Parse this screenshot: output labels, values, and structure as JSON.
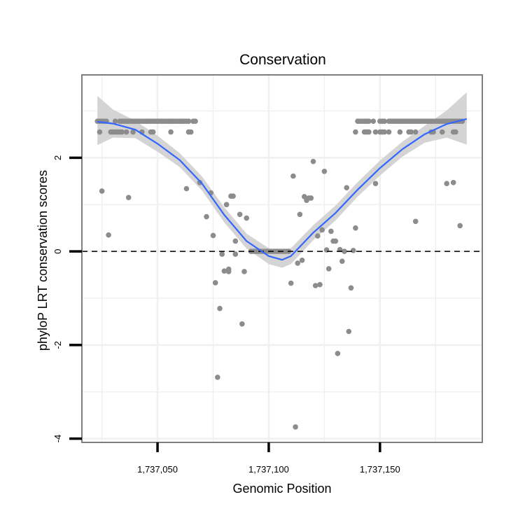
{
  "chart_data": {
    "type": "scatter",
    "title": "Conservation",
    "xlabel": "Genomic Position",
    "ylabel": "phyloP LRT conservation scores",
    "xlim": [
      1737016,
      1737196
    ],
    "ylim": [
      -4.08,
      3.77
    ],
    "x_ticks": [
      1737050,
      1737100,
      1737150
    ],
    "x_tick_labels": [
      "1,737,050",
      "1,737,100",
      "1,737,150"
    ],
    "y_ticks": [
      -4,
      -2,
      0,
      2
    ],
    "y_tick_labels": [
      "-4",
      "-2",
      "0",
      "2"
    ],
    "grid": true,
    "reference_line": {
      "y": 0,
      "style": "dashed"
    },
    "colors": {
      "points": "#8c8c8c",
      "smooth": "#3366ff",
      "ribbon": "#d4d4d4",
      "panel_border": "#7f7f7f",
      "grid": "#f0f0f0"
    },
    "series": [
      {
        "name": "phyloP scores",
        "points": [
          [
            1737023,
            2.78
          ],
          [
            1737024,
            2.78
          ],
          [
            1737025,
            2.78
          ],
          [
            1737026,
            2.78
          ],
          [
            1737027,
            2.78
          ],
          [
            1737024,
            2.55
          ],
          [
            1737029,
            2.55
          ],
          [
            1737030,
            2.55
          ],
          [
            1737031,
            2.55
          ],
          [
            1737032,
            2.55
          ],
          [
            1737033,
            2.55
          ],
          [
            1737034,
            2.55
          ],
          [
            1737036,
            2.55
          ],
          [
            1737039,
            2.55
          ],
          [
            1737043,
            2.55
          ],
          [
            1737047,
            2.55
          ],
          [
            1737048,
            2.55
          ],
          [
            1737056,
            2.55
          ],
          [
            1737064,
            2.55
          ],
          [
            1737065,
            2.55
          ],
          [
            1737031,
            2.78
          ],
          [
            1737033,
            2.78
          ],
          [
            1737034,
            2.78
          ],
          [
            1737035,
            2.78
          ],
          [
            1737036,
            2.78
          ],
          [
            1737037,
            2.78
          ],
          [
            1737038,
            2.78
          ],
          [
            1737039,
            2.78
          ],
          [
            1737040,
            2.78
          ],
          [
            1737041,
            2.78
          ],
          [
            1737042,
            2.78
          ],
          [
            1737043,
            2.78
          ],
          [
            1737044,
            2.78
          ],
          [
            1737045,
            2.78
          ],
          [
            1737046,
            2.78
          ],
          [
            1737047,
            2.78
          ],
          [
            1737048,
            2.78
          ],
          [
            1737049,
            2.78
          ],
          [
            1737050,
            2.78
          ],
          [
            1737051,
            2.78
          ],
          [
            1737052,
            2.78
          ],
          [
            1737053,
            2.78
          ],
          [
            1737054,
            2.78
          ],
          [
            1737055,
            2.78
          ],
          [
            1737056,
            2.78
          ],
          [
            1737057,
            2.78
          ],
          [
            1737058,
            2.78
          ],
          [
            1737059,
            2.78
          ],
          [
            1737060,
            2.78
          ],
          [
            1737061,
            2.78
          ],
          [
            1737062,
            2.78
          ],
          [
            1737063,
            2.78
          ],
          [
            1737064,
            2.78
          ],
          [
            1737066,
            2.78
          ],
          [
            1737067,
            2.78
          ],
          [
            1737140,
            2.78
          ],
          [
            1737141,
            2.78
          ],
          [
            1737142,
            2.78
          ],
          [
            1737143,
            2.78
          ],
          [
            1737144,
            2.78
          ],
          [
            1737145,
            2.78
          ],
          [
            1737147,
            2.78
          ],
          [
            1737150,
            2.78
          ],
          [
            1737151,
            2.78
          ],
          [
            1737152,
            2.78
          ],
          [
            1737154,
            2.78
          ],
          [
            1737155,
            2.78
          ],
          [
            1737156,
            2.78
          ],
          [
            1737157,
            2.78
          ],
          [
            1737158,
            2.78
          ],
          [
            1737159,
            2.78
          ],
          [
            1737160,
            2.78
          ],
          [
            1737161,
            2.78
          ],
          [
            1737162,
            2.78
          ],
          [
            1737163,
            2.78
          ],
          [
            1737164,
            2.78
          ],
          [
            1737165,
            2.78
          ],
          [
            1737166,
            2.78
          ],
          [
            1737167,
            2.78
          ],
          [
            1737168,
            2.78
          ],
          [
            1737169,
            2.78
          ],
          [
            1737170,
            2.78
          ],
          [
            1737171,
            2.78
          ],
          [
            1737172,
            2.78
          ],
          [
            1737173,
            2.78
          ],
          [
            1737174,
            2.78
          ],
          [
            1737175,
            2.78
          ],
          [
            1737176,
            2.78
          ],
          [
            1737177,
            2.78
          ],
          [
            1737178,
            2.78
          ],
          [
            1737179,
            2.78
          ],
          [
            1737180,
            2.78
          ],
          [
            1737181,
            2.78
          ],
          [
            1737182,
            2.78
          ],
          [
            1737183,
            2.78
          ],
          [
            1737184,
            2.78
          ],
          [
            1737185,
            2.78
          ],
          [
            1737186,
            2.78
          ],
          [
            1737187,
            2.78
          ],
          [
            1737139,
            2.55
          ],
          [
            1737143,
            2.55
          ],
          [
            1737144,
            2.55
          ],
          [
            1737145,
            2.55
          ],
          [
            1737148,
            2.55
          ],
          [
            1737150,
            2.55
          ],
          [
            1737151,
            2.55
          ],
          [
            1737152,
            2.55
          ],
          [
            1737154,
            2.55
          ],
          [
            1737159,
            2.55
          ],
          [
            1737163,
            2.55
          ],
          [
            1737164,
            2.55
          ],
          [
            1737166,
            2.55
          ],
          [
            1737173,
            2.55
          ],
          [
            1737174,
            2.55
          ],
          [
            1737178,
            2.55
          ],
          [
            1737183,
            2.55
          ],
          [
            1737184,
            2.55
          ],
          [
            1737025,
            1.29
          ],
          [
            1737028,
            0.35
          ],
          [
            1737037,
            1.15
          ],
          [
            1737063,
            1.34
          ],
          [
            1737069,
            1.47
          ],
          [
            1737072,
            0.74
          ],
          [
            1737074,
            1.25
          ],
          [
            1737075,
            0.34
          ],
          [
            1737076,
            -0.67
          ],
          [
            1737077,
            -2.69
          ],
          [
            1737078,
            -1.22
          ],
          [
            1737079,
            -0.06
          ],
          [
            1737080,
            -0.42
          ],
          [
            1737081,
            1.0
          ],
          [
            1737082,
            -0.43
          ],
          [
            1737082,
            -0.38
          ],
          [
            1737083,
            1.18
          ],
          [
            1737084,
            1.18
          ],
          [
            1737085,
            0.22
          ],
          [
            1737085,
            -0.06
          ],
          [
            1737087,
            0.79
          ],
          [
            1737088,
            -1.55
          ],
          [
            1737089,
            -0.43
          ],
          [
            1737090,
            0.71
          ],
          [
            1737092,
            0.0
          ],
          [
            1737093,
            0.0
          ],
          [
            1737094,
            0.0
          ],
          [
            1737095,
            0.0
          ],
          [
            1737096,
            0.0
          ],
          [
            1737097,
            0.0
          ],
          [
            1737098,
            0.0
          ],
          [
            1737099,
            0.0
          ],
          [
            1737100,
            0.0
          ],
          [
            1737101,
            0.0
          ],
          [
            1737102,
            0.0
          ],
          [
            1737103,
            0.0
          ],
          [
            1737104,
            0.0
          ],
          [
            1737105,
            0.0
          ],
          [
            1737106,
            0.0
          ],
          [
            1737107,
            0.0
          ],
          [
            1737108,
            0.0
          ],
          [
            1737109,
            0.0
          ],
          [
            1737110,
            -0.68
          ],
          [
            1737111,
            1.61
          ],
          [
            1737112,
            -3.75
          ],
          [
            1737113,
            -0.25
          ],
          [
            1737114,
            0.79
          ],
          [
            1737115,
            -0.19
          ],
          [
            1737116,
            1.17
          ],
          [
            1737117,
            1.09
          ],
          [
            1737118,
            1.14
          ],
          [
            1737119,
            1.14
          ],
          [
            1737120,
            1.92
          ],
          [
            1737121,
            -0.73
          ],
          [
            1737122,
            0.33
          ],
          [
            1737123,
            -0.71
          ],
          [
            1737124,
            0.46
          ],
          [
            1737125,
            1.71
          ],
          [
            1737126,
            0.03
          ],
          [
            1737127,
            -0.37
          ],
          [
            1737128,
            0.43
          ],
          [
            1737129,
            0.22
          ],
          [
            1737130,
            0.22
          ],
          [
            1737131,
            -2.18
          ],
          [
            1737132,
            0.04
          ],
          [
            1737133,
            -0.21
          ],
          [
            1737134,
            0.0
          ],
          [
            1737135,
            1.36
          ],
          [
            1737136,
            -1.71
          ],
          [
            1737137,
            -0.78
          ],
          [
            1737138,
            0.02
          ],
          [
            1737139,
            0.5
          ],
          [
            1737148,
            1.45
          ],
          [
            1737166,
            0.64
          ],
          [
            1737180,
            1.45
          ],
          [
            1737183,
            1.47
          ],
          [
            1737186,
            0.55
          ]
        ]
      },
      {
        "name": "loess smooth",
        "x": [
          1737023,
          1737030,
          1737040,
          1737050,
          1737060,
          1737070,
          1737080,
          1737090,
          1737100,
          1737106,
          1737110,
          1737120,
          1737130,
          1737140,
          1737150,
          1737160,
          1737170,
          1737180,
          1737189
        ],
        "y": [
          2.77,
          2.73,
          2.6,
          2.3,
          1.95,
          1.45,
          0.78,
          0.22,
          -0.1,
          -0.18,
          -0.1,
          0.4,
          0.82,
          1.32,
          1.78,
          2.18,
          2.5,
          2.72,
          2.83
        ]
      },
      {
        "name": "confidence band",
        "x": [
          1737023,
          1737030,
          1737040,
          1737050,
          1737060,
          1737070,
          1737080,
          1737090,
          1737100,
          1737106,
          1737110,
          1737120,
          1737130,
          1737140,
          1737150,
          1737160,
          1737170,
          1737180,
          1737189
        ],
        "lower": [
          2.27,
          2.43,
          2.42,
          2.13,
          1.8,
          1.3,
          0.62,
          0.06,
          -0.27,
          -0.35,
          -0.27,
          0.24,
          0.66,
          1.17,
          1.62,
          2.02,
          2.32,
          2.43,
          2.28
        ],
        "upper": [
          3.32,
          3.03,
          2.79,
          2.47,
          2.1,
          1.6,
          0.94,
          0.38,
          0.07,
          -0.02,
          0.07,
          0.56,
          0.98,
          1.48,
          1.94,
          2.34,
          2.68,
          3.01,
          3.4
        ]
      }
    ]
  }
}
